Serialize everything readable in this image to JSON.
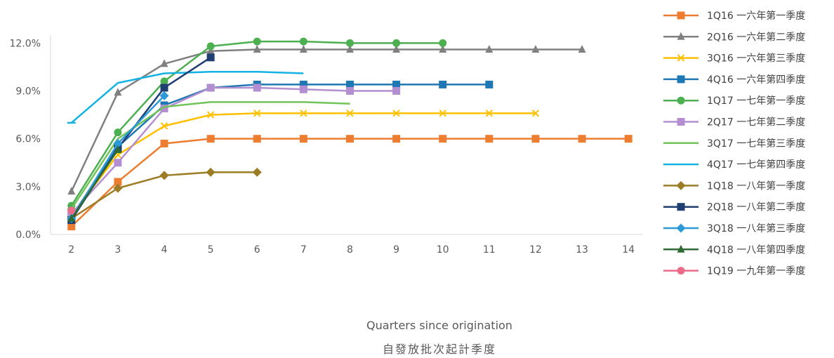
{
  "chart_data": {
    "type": "line",
    "title": "",
    "xlabel": "Quarters since origination",
    "xlabel_zh": "自發放批次起計季度",
    "ylabel": "",
    "x": [
      2,
      3,
      4,
      5,
      6,
      7,
      8,
      9,
      10,
      11,
      12,
      13,
      14
    ],
    "xlim": [
      1.55,
      14.3
    ],
    "ylim": [
      0,
      12.5
    ],
    "yticks": [
      "0.0%",
      "3.0%",
      "6.0%",
      "9.0%",
      "12.0%"
    ],
    "ytick_values": [
      0,
      3,
      6,
      9,
      12
    ],
    "grid": false,
    "legend_position": "right",
    "series": [
      {
        "name": "1Q16 一六年第一季度",
        "color": "#ED7D31",
        "marker": "square",
        "x": [
          2,
          3,
          4,
          5,
          6,
          7,
          8,
          9,
          10,
          11,
          12,
          13,
          14
        ],
        "values": [
          0.5,
          3.3,
          5.7,
          6.0,
          6.0,
          6.0,
          6.0,
          6.0,
          6.0,
          6.0,
          6.0,
          6.0,
          6.0
        ]
      },
      {
        "name": "2Q16 一六年第二季度",
        "color": "#808080",
        "marker": "triangle",
        "x": [
          2,
          3,
          4,
          5,
          6,
          7,
          8,
          9,
          10,
          11,
          12,
          13
        ],
        "values": [
          2.7,
          8.9,
          10.7,
          11.5,
          11.6,
          11.6,
          11.6,
          11.6,
          11.6,
          11.6,
          11.6,
          11.6
        ]
      },
      {
        "name": "3Q16 一六年第三季度",
        "color": "#FFC000",
        "marker": "x",
        "x": [
          2,
          3,
          4,
          5,
          6,
          7,
          8,
          9,
          10,
          11,
          12
        ],
        "values": [
          1.2,
          5.0,
          6.8,
          7.5,
          7.6,
          7.6,
          7.6,
          7.6,
          7.6,
          7.6,
          7.6
        ]
      },
      {
        "name": "4Q16 一六年第四季度",
        "color": "#1F77B4",
        "marker": "square",
        "x": [
          2,
          3,
          4,
          5,
          6,
          7,
          8,
          9,
          10,
          11
        ],
        "values": [
          1.1,
          5.5,
          8.1,
          9.2,
          9.4,
          9.4,
          9.4,
          9.4,
          9.4,
          9.4
        ]
      },
      {
        "name": "1Q17 一七年第一季度",
        "color": "#4CAF50",
        "marker": "circle",
        "x": [
          2,
          3,
          4,
          5,
          6,
          7,
          8,
          9,
          10
        ],
        "values": [
          1.8,
          6.4,
          9.6,
          11.8,
          12.1,
          12.1,
          12.0,
          12.0,
          12.0
        ]
      },
      {
        "name": "2Q17 一七年第二季度",
        "color": "#B38ED0",
        "marker": "square",
        "x": [
          2,
          3,
          4,
          5,
          6,
          7,
          8,
          9
        ],
        "values": [
          1.3,
          4.5,
          7.9,
          9.2,
          9.2,
          9.1,
          9.0,
          9.0
        ]
      },
      {
        "name": "3Q17 一七年第三季度",
        "color": "#70C45A",
        "marker": "none",
        "x": [
          2,
          3,
          4,
          5,
          6,
          7,
          8
        ],
        "values": [
          1.6,
          6.0,
          8.0,
          8.3,
          8.3,
          8.3,
          8.2
        ]
      },
      {
        "name": "4Q17 一七年第四季度",
        "color": "#13B2E3",
        "marker": "none",
        "x": [
          2,
          3,
          4,
          5,
          6,
          7
        ],
        "values": [
          7.0,
          9.5,
          10.1,
          10.2,
          10.2,
          10.1
        ]
      },
      {
        "name": "1Q18 一八年第一季度",
        "color": "#9C7C25",
        "marker": "diamond",
        "x": [
          2,
          3,
          4,
          5,
          6
        ],
        "values": [
          1.0,
          2.9,
          3.7,
          3.9,
          3.9
        ]
      },
      {
        "name": "2Q18 一八年第二季度",
        "color": "#1F3F73",
        "marker": "square",
        "x": [
          2,
          3,
          4,
          5
        ],
        "values": [
          0.9,
          5.4,
          9.2,
          11.1
        ]
      },
      {
        "name": "3Q18 一八年第三季度",
        "color": "#2D9AD8",
        "marker": "diamond",
        "x": [
          2,
          3,
          4
        ],
        "values": [
          1.0,
          5.7,
          8.7
        ]
      },
      {
        "name": "4Q18 一八年第四季度",
        "color": "#2E6B34",
        "marker": "triangle",
        "x": [
          2,
          3
        ],
        "values": [
          1.0,
          5.3
        ]
      },
      {
        "name": "1Q19 一九年第一季度",
        "color": "#EC6B8B",
        "marker": "circle",
        "x": [
          2
        ],
        "values": [
          1.5
        ]
      }
    ]
  }
}
